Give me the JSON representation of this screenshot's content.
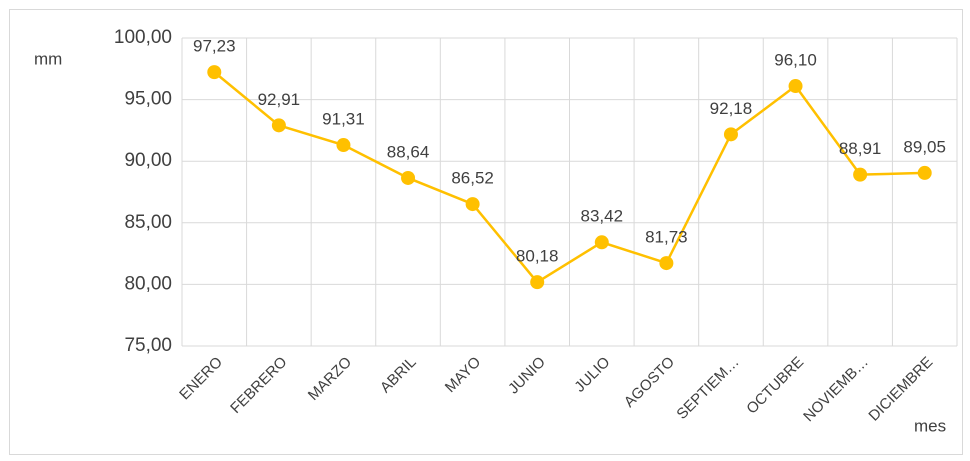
{
  "chart_data": {
    "type": "line",
    "y_label": "mm",
    "x_label": "mes",
    "categories": [
      "ENERO",
      "FEBRERO",
      "MARZO",
      "ABRIL",
      "MAYO",
      "JUNIO",
      "JULIO",
      "AGOSTO",
      "SEPTIEM…",
      "OCTUBRE",
      "NOVIEMB…",
      "DICIEMBRE"
    ],
    "values": [
      97.23,
      92.91,
      91.31,
      88.64,
      86.52,
      80.18,
      83.42,
      81.73,
      92.18,
      96.1,
      88.91,
      89.05
    ],
    "value_labels": [
      "97,23",
      "92,91",
      "91,31",
      "88,64",
      "86,52",
      "80,18",
      "83,42",
      "81,73",
      "92,18",
      "96,10",
      "88,91",
      "89,05"
    ],
    "color": "#FFC000",
    "ylim": [
      75,
      100
    ],
    "yticks": [
      {
        "value": 75,
        "label": "75,00"
      },
      {
        "value": 80,
        "label": "80,00"
      },
      {
        "value": 85,
        "label": "85,00"
      },
      {
        "value": 90,
        "label": "90,00"
      },
      {
        "value": 95,
        "label": "95,00"
      },
      {
        "value": 100,
        "label": "100,00"
      }
    ],
    "grid": true
  }
}
